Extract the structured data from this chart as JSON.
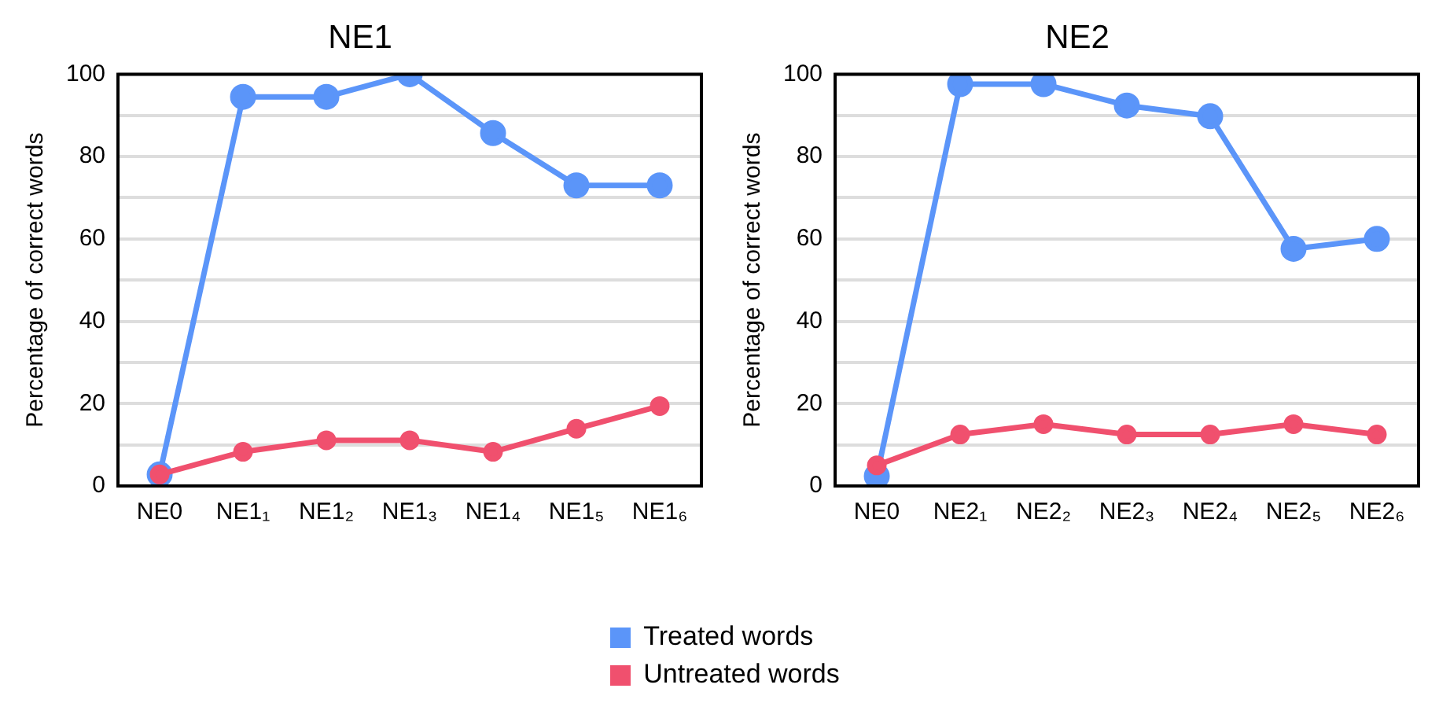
{
  "chart_data": [
    {
      "type": "line",
      "title": "NE1",
      "ylabel": "Percentage of correct words",
      "categories": [
        "NE0",
        "NE1₁",
        "NE1₂",
        "NE1₃",
        "NE1₄",
        "NE1₅",
        "NE1₆"
      ],
      "series": [
        {
          "name": "Treated words",
          "color": "#5b95f9",
          "values": [
            2.8,
            94.5,
            94.5,
            100,
            85.7,
            73,
            73
          ]
        },
        {
          "name": "Untreated words",
          "color": "#f0506e",
          "values": [
            2.8,
            8.3,
            11.1,
            11.1,
            8.3,
            13.9,
            19.4
          ]
        }
      ],
      "ylim": [
        0,
        100
      ],
      "yticks": [
        0,
        {
          "value": 10,
          "label": null
        },
        20,
        {
          "value": 30,
          "label": null
        },
        40,
        {
          "value": 50,
          "label": null
        },
        60,
        {
          "value": 70,
          "label": null
        },
        80,
        {
          "value": 90,
          "label": null
        },
        100
      ],
      "grid": "y",
      "legend": "bottom",
      "marker": "circle",
      "line_style": "solid"
    },
    {
      "type": "line",
      "title": "NE2",
      "ylabel": "Percentage of correct words",
      "categories": [
        "NE0",
        "NE2₁",
        "NE2₂",
        "NE2₃",
        "NE2₄",
        "NE2₅",
        "NE2₆"
      ],
      "series": [
        {
          "color": "#5b95f9",
          "values": [
            2.4,
            97.6,
            97.6,
            92.4,
            89.8,
            57.6,
            60
          ]
        },
        {
          "color": "#f0506e",
          "values": [
            5,
            12.5,
            15,
            12.5,
            12.5,
            15,
            12.5
          ]
        }
      ],
      "ylim": [
        0,
        100
      ],
      "yticks": [
        0,
        {
          "value": 10,
          "label": null
        },
        20,
        {
          "value": 30,
          "label": null
        },
        40,
        {
          "value": 50,
          "label": null
        },
        60,
        {
          "value": 70,
          "label": null
        },
        80,
        {
          "value": 90,
          "label": null
        },
        100
      ],
      "grid": "y",
      "marker": "circle",
      "line_style": "solid"
    }
  ]
}
